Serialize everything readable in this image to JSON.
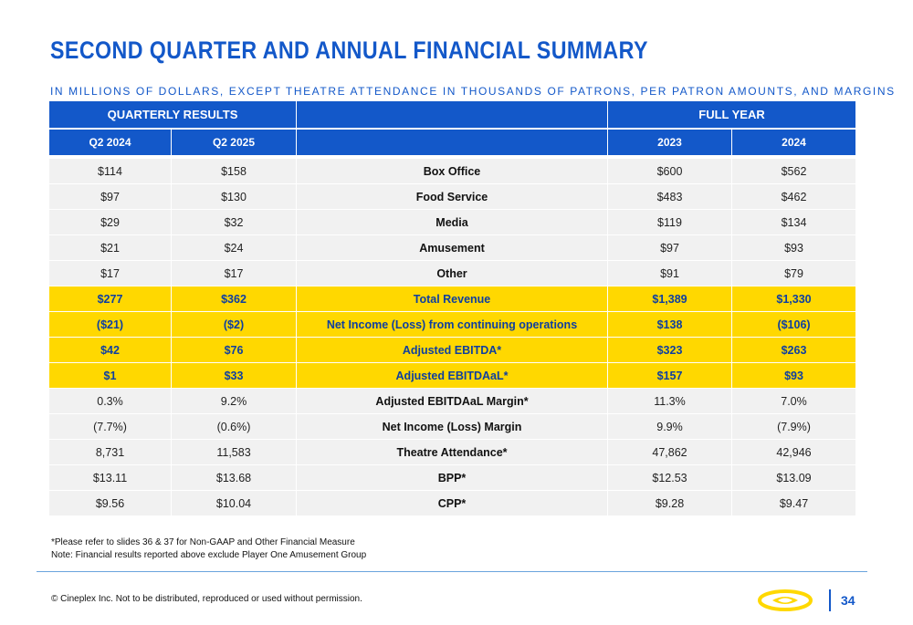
{
  "title": "SECOND QUARTER AND ANNUAL FINANCIAL SUMMARY",
  "subtitle": "IN MILLIONS OF DOLLARS, EXCEPT THEATRE ATTENDANCE IN THOUSANDS OF PATRONS, PER PATRON AMOUNTS, AND MARGINS",
  "table": {
    "group_headers": {
      "quarterly": "QUARTERLY RESULTS",
      "middle": "",
      "full_year": "FULL YEAR"
    },
    "columns": [
      "Q2 2024",
      "Q2 2025",
      "",
      "2023",
      "2024"
    ],
    "rows": [
      {
        "label": "Box Office",
        "q2_2024": "$114",
        "q2_2025": "$158",
        "fy2023": "$600",
        "fy2024": "$562",
        "highlight": false
      },
      {
        "label": "Food Service",
        "q2_2024": "$97",
        "q2_2025": "$130",
        "fy2023": "$483",
        "fy2024": "$462",
        "highlight": false
      },
      {
        "label": "Media",
        "q2_2024": "$29",
        "q2_2025": "$32",
        "fy2023": "$119",
        "fy2024": "$134",
        "highlight": false
      },
      {
        "label": "Amusement",
        "q2_2024": "$21",
        "q2_2025": "$24",
        "fy2023": "$97",
        "fy2024": "$93",
        "highlight": false
      },
      {
        "label": "Other",
        "q2_2024": "$17",
        "q2_2025": "$17",
        "fy2023": "$91",
        "fy2024": "$79",
        "highlight": false
      },
      {
        "label": "Total Revenue",
        "q2_2024": "$277",
        "q2_2025": "$362",
        "fy2023": "$1,389",
        "fy2024": "$1,330",
        "highlight": true
      },
      {
        "label": "Net Income (Loss) from continuing operations",
        "q2_2024": "($21)",
        "q2_2025": "($2)",
        "fy2023": "$138",
        "fy2024": "($106)",
        "highlight": true
      },
      {
        "label": "Adjusted EBITDA*",
        "q2_2024": "$42",
        "q2_2025": "$76",
        "fy2023": "$323",
        "fy2024": "$263",
        "highlight": true
      },
      {
        "label": "Adjusted EBITDAaL*",
        "q2_2024": "$1",
        "q2_2025": "$33",
        "fy2023": "$157",
        "fy2024": "$93",
        "highlight": true
      },
      {
        "label": "Adjusted EBITDAaL Margin*",
        "q2_2024": "0.3%",
        "q2_2025": "9.2%",
        "fy2023": "11.3%",
        "fy2024": "7.0%",
        "highlight": false
      },
      {
        "label": "Net Income (Loss) Margin",
        "q2_2024": "(7.7%)",
        "q2_2025": "(0.6%)",
        "fy2023": "9.9%",
        "fy2024": "(7.9%)",
        "highlight": false
      },
      {
        "label": "Theatre Attendance*",
        "q2_2024": "8,731",
        "q2_2025": "11,583",
        "fy2023": "47,862",
        "fy2024": "42,946",
        "highlight": false
      },
      {
        "label": "BPP*",
        "q2_2024": "$13.11",
        "q2_2025": "$13.68",
        "fy2023": "$12.53",
        "fy2024": "$13.09",
        "highlight": false
      },
      {
        "label": "CPP*",
        "q2_2024": "$9.56",
        "q2_2025": "$10.04",
        "fy2023": "$9.28",
        "fy2024": "$9.47",
        "highlight": false
      }
    ]
  },
  "notes": [
    "*Please refer to slides 36 & 37 for Non-GAAP and Other Financial Measure",
    "Note: Financial results reported above exclude Player One Amusement Group"
  ],
  "footer": {
    "copyright": "© Cineplex Inc. Not to be distributed, reproduced or used without permission.",
    "page_number": "34",
    "logo_icon": "cineplex-logo-icon"
  },
  "colors": {
    "brand_blue": "#1358c9",
    "highlight_yellow": "#ffd800",
    "row_gray": "#f1f1f1"
  }
}
